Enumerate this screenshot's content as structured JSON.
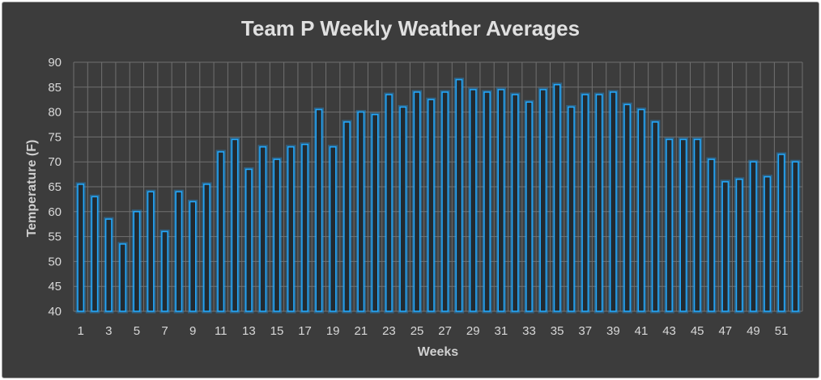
{
  "chart_data": {
    "type": "bar",
    "title": "Team P Weekly Weather Averages",
    "xlabel": "Weeks",
    "ylabel": "Temperature (F)",
    "ylim": [
      40,
      90
    ],
    "yticks": [
      40,
      45,
      50,
      55,
      60,
      65,
      70,
      75,
      80,
      85,
      90
    ],
    "categories": [
      1,
      2,
      3,
      4,
      5,
      6,
      7,
      8,
      9,
      10,
      11,
      12,
      13,
      14,
      15,
      16,
      17,
      18,
      19,
      20,
      21,
      22,
      23,
      24,
      25,
      26,
      27,
      28,
      29,
      30,
      31,
      32,
      33,
      34,
      35,
      36,
      37,
      38,
      39,
      40,
      41,
      42,
      43,
      44,
      45,
      46,
      47,
      48,
      49,
      50,
      51,
      52
    ],
    "xtick_labels": [
      "1",
      "3",
      "5",
      "7",
      "9",
      "11",
      "13",
      "15",
      "17",
      "19",
      "21",
      "23",
      "25",
      "27",
      "29",
      "31",
      "33",
      "35",
      "37",
      "39",
      "41",
      "43",
      "45",
      "47",
      "49",
      "51"
    ],
    "series": [
      {
        "values": [
          65.5,
          63,
          58.5,
          53.5,
          60,
          64,
          56,
          64,
          62,
          65.5,
          72,
          74.5,
          68.5,
          73,
          70.5,
          73,
          73.5,
          80.5,
          73,
          78,
          80,
          79.5,
          83.5,
          81,
          84,
          82.5,
          84,
          86.5,
          84.5,
          84,
          84.5,
          83.5,
          82,
          84.5,
          85.5,
          81,
          83.5,
          83.5,
          84,
          81.5,
          80.5,
          78,
          74.5,
          74.5,
          74.5,
          70.5,
          66,
          66.5,
          70,
          67,
          71.5,
          70
        ]
      }
    ],
    "grid": true,
    "colors": {
      "bar_stroke": "#22aaff",
      "background": "#3c3c3c"
    }
  }
}
